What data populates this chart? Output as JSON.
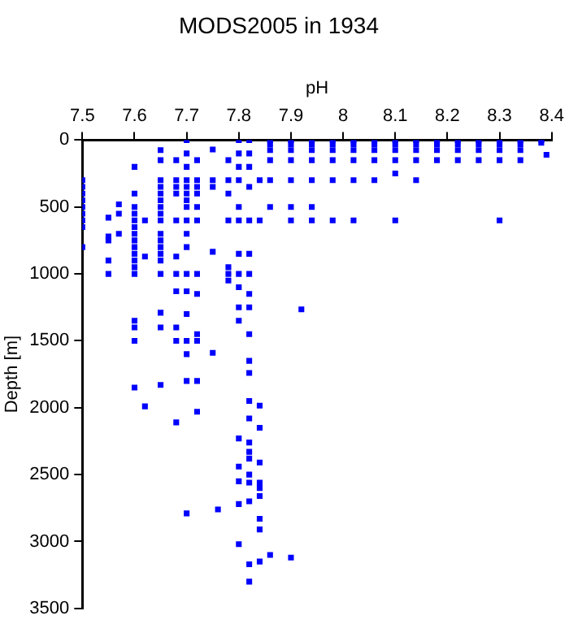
{
  "chart_data": {
    "type": "scatter",
    "title": "MODS2005 in 1934",
    "xlabel": "pH",
    "ylabel": "Depth [m]",
    "xlim": [
      7.5,
      8.4
    ],
    "xticks": [
      7.5,
      7.6,
      7.7,
      7.8,
      7.9,
      8,
      8.1,
      8.2,
      8.3,
      8.4
    ],
    "ylim": [
      3500,
      0
    ],
    "yticks": [
      0,
      500,
      1000,
      1500,
      2000,
      2500,
      3000,
      3500
    ],
    "grid": false,
    "legend": false,
    "marker": "square",
    "series": [
      {
        "color": "#0000ff",
        "x": [
          7.5,
          7.5,
          7.5,
          7.5,
          7.5,
          7.5,
          7.5,
          7.5,
          7.5,
          7.55,
          7.55,
          7.55,
          7.55,
          7.55,
          7.57,
          7.57,
          7.57,
          7.6,
          7.6,
          7.6,
          7.6,
          7.6,
          7.6,
          7.6,
          7.6,
          7.6,
          7.6,
          7.6,
          7.6,
          7.6,
          7.6,
          7.6,
          7.6,
          7.6,
          7.62,
          7.62,
          7.62,
          7.65,
          7.65,
          7.65,
          7.65,
          7.65,
          7.65,
          7.65,
          7.65,
          7.65,
          7.65,
          7.65,
          7.65,
          7.65,
          7.65,
          7.65,
          7.65,
          7.65,
          7.65,
          7.68,
          7.68,
          7.68,
          7.68,
          7.68,
          7.68,
          7.68,
          7.68,
          7.68,
          7.68,
          7.68,
          7.7,
          7.7,
          7.7,
          7.7,
          7.7,
          7.7,
          7.7,
          7.7,
          7.7,
          7.7,
          7.7,
          7.7,
          7.7,
          7.7,
          7.7,
          7.7,
          7.7,
          7.7,
          7.72,
          7.72,
          7.72,
          7.72,
          7.72,
          7.72,
          7.72,
          7.72,
          7.72,
          7.72,
          7.72,
          7.72,
          7.75,
          7.75,
          7.75,
          7.75,
          7.75,
          7.76,
          7.78,
          7.78,
          7.78,
          7.78,
          7.78,
          7.78,
          7.78,
          7.8,
          7.8,
          7.8,
          7.8,
          7.8,
          7.8,
          7.8,
          7.8,
          7.8,
          7.8,
          7.8,
          7.8,
          7.8,
          7.8,
          7.8,
          7.8,
          7.82,
          7.82,
          7.82,
          7.82,
          7.82,
          7.82,
          7.82,
          7.82,
          7.82,
          7.82,
          7.82,
          7.82,
          7.82,
          7.82,
          7.82,
          7.82,
          7.82,
          7.82,
          7.82,
          7.82,
          7.82,
          7.82,
          7.84,
          7.84,
          7.84,
          7.84,
          7.84,
          7.84,
          7.84,
          7.84,
          7.84,
          7.84,
          7.84,
          7.86,
          7.86,
          7.86,
          7.86,
          7.86,
          7.86,
          7.86,
          7.9,
          7.9,
          7.9,
          7.9,
          7.9,
          7.9,
          7.9,
          7.9,
          7.92,
          7.94,
          7.94,
          7.94,
          7.94,
          7.94,
          7.94,
          7.94,
          7.98,
          7.98,
          7.98,
          7.98,
          7.98,
          7.98,
          8.02,
          8.02,
          8.02,
          8.02,
          8.02,
          8.02,
          8.06,
          8.06,
          8.06,
          8.06,
          8.06,
          8.1,
          8.1,
          8.1,
          8.1,
          8.1,
          8.1,
          8.14,
          8.14,
          8.14,
          8.14,
          8.14,
          8.18,
          8.18,
          8.18,
          8.18,
          8.22,
          8.22,
          8.22,
          8.22,
          8.26,
          8.26,
          8.26,
          8.26,
          8.3,
          8.3,
          8.3,
          8.3,
          8.3,
          8.34,
          8.34,
          8.34,
          8.34,
          8.38,
          8.38,
          8.39
        ],
        "values": [
          300,
          350,
          400,
          450,
          500,
          550,
          600,
          650,
          800,
          580,
          720,
          750,
          900,
          1000,
          480,
          550,
          700,
          200,
          400,
          500,
          550,
          600,
          650,
          700,
          750,
          800,
          850,
          900,
          950,
          1000,
          1350,
          1400,
          1500,
          1850,
          600,
          870,
          1990,
          75,
          150,
          300,
          350,
          400,
          450,
          500,
          550,
          600,
          700,
          750,
          800,
          850,
          900,
          1000,
          1290,
          1400,
          1830,
          150,
          300,
          350,
          400,
          600,
          870,
          1000,
          1130,
          1400,
          1500,
          2110,
          0,
          100,
          200,
          300,
          350,
          400,
          450,
          500,
          600,
          700,
          800,
          1000,
          1130,
          1300,
          1500,
          1600,
          1800,
          2790,
          150,
          300,
          350,
          400,
          500,
          600,
          1000,
          1150,
          1450,
          1500,
          1800,
          2030,
          70,
          300,
          350,
          835,
          1590,
          2760,
          150,
          300,
          400,
          600,
          950,
          1000,
          1050,
          0,
          100,
          200,
          300,
          500,
          600,
          850,
          1000,
          1100,
          1250,
          1350,
          2230,
          2440,
          2550,
          2720,
          3020,
          0,
          100,
          200,
          350,
          600,
          850,
          1000,
          1150,
          1250,
          1450,
          1650,
          1740,
          1950,
          2080,
          2260,
          2330,
          2380,
          2500,
          2560,
          2700,
          3170,
          3300,
          300,
          600,
          1985,
          2150,
          2410,
          2560,
          2600,
          2660,
          2830,
          2910,
          3150,
          0,
          30,
          75,
          150,
          300,
          500,
          3100,
          0,
          30,
          75,
          150,
          300,
          500,
          600,
          3120,
          1265,
          0,
          30,
          75,
          150,
          300,
          500,
          600,
          0,
          30,
          75,
          150,
          300,
          600,
          0,
          30,
          75,
          150,
          300,
          600,
          0,
          30,
          75,
          150,
          300,
          0,
          30,
          75,
          150,
          250,
          600,
          0,
          30,
          75,
          150,
          300,
          0,
          30,
          75,
          150,
          0,
          30,
          75,
          150,
          0,
          30,
          75,
          150,
          0,
          30,
          75,
          150,
          600,
          0,
          30,
          75,
          150,
          0,
          20,
          110
        ]
      }
    ]
  }
}
